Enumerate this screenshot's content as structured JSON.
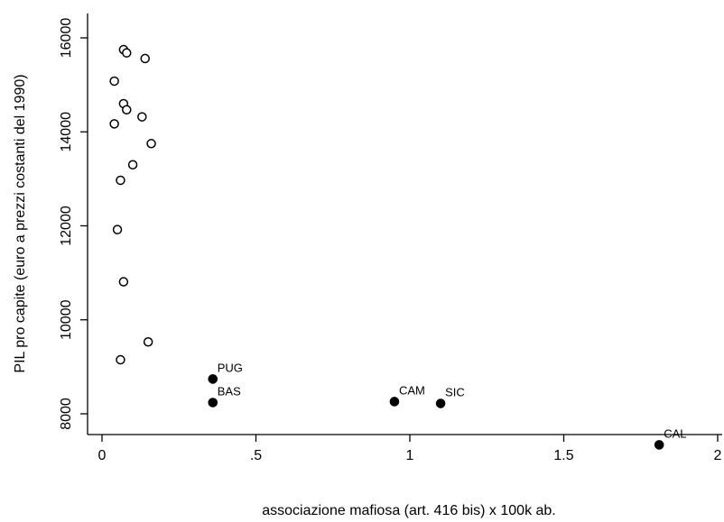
{
  "chart_data": {
    "type": "scatter",
    "title": "",
    "xlabel": "associazione mafiosa (art. 416 bis) x 100k ab.",
    "ylabel": "PIL pro capite (euro a prezzi costanti del 1990)",
    "xlim": [
      0,
      2
    ],
    "ylim": [
      7200,
      16300
    ],
    "x_ticks": [
      0,
      0.5,
      1,
      1.5,
      2
    ],
    "x_tick_labels": [
      "0",
      ".5",
      "1",
      "1.5",
      "2"
    ],
    "y_ticks": [
      8000,
      10000,
      12000,
      14000,
      16000
    ],
    "y_tick_labels": [
      "8000",
      "10000",
      "12000",
      "14000",
      "16000"
    ],
    "grid": false,
    "series": [
      {
        "marker": "hollow-circle",
        "points": [
          {
            "x": 0.07,
            "y": 15750
          },
          {
            "x": 0.08,
            "y": 15680
          },
          {
            "x": 0.14,
            "y": 15560
          },
          {
            "x": 0.04,
            "y": 15080
          },
          {
            "x": 0.07,
            "y": 14600
          },
          {
            "x": 0.08,
            "y": 14470
          },
          {
            "x": 0.13,
            "y": 14320
          },
          {
            "x": 0.04,
            "y": 14170
          },
          {
            "x": 0.16,
            "y": 13750
          },
          {
            "x": 0.1,
            "y": 13300
          },
          {
            "x": 0.06,
            "y": 12970
          },
          {
            "x": 0.05,
            "y": 11920
          },
          {
            "x": 0.07,
            "y": 10810
          },
          {
            "x": 0.15,
            "y": 9530
          },
          {
            "x": 0.06,
            "y": 9150
          }
        ]
      },
      {
        "marker": "filled-circle",
        "points": [
          {
            "x": 0.36,
            "y": 8740,
            "label": "PUG"
          },
          {
            "x": 0.36,
            "y": 8240,
            "label": "BAS"
          },
          {
            "x": 0.95,
            "y": 8260,
            "label": "CAM"
          },
          {
            "x": 1.1,
            "y": 8220,
            "label": "SIC"
          },
          {
            "x": 1.81,
            "y": 7340,
            "label": "CAL"
          }
        ]
      }
    ]
  }
}
